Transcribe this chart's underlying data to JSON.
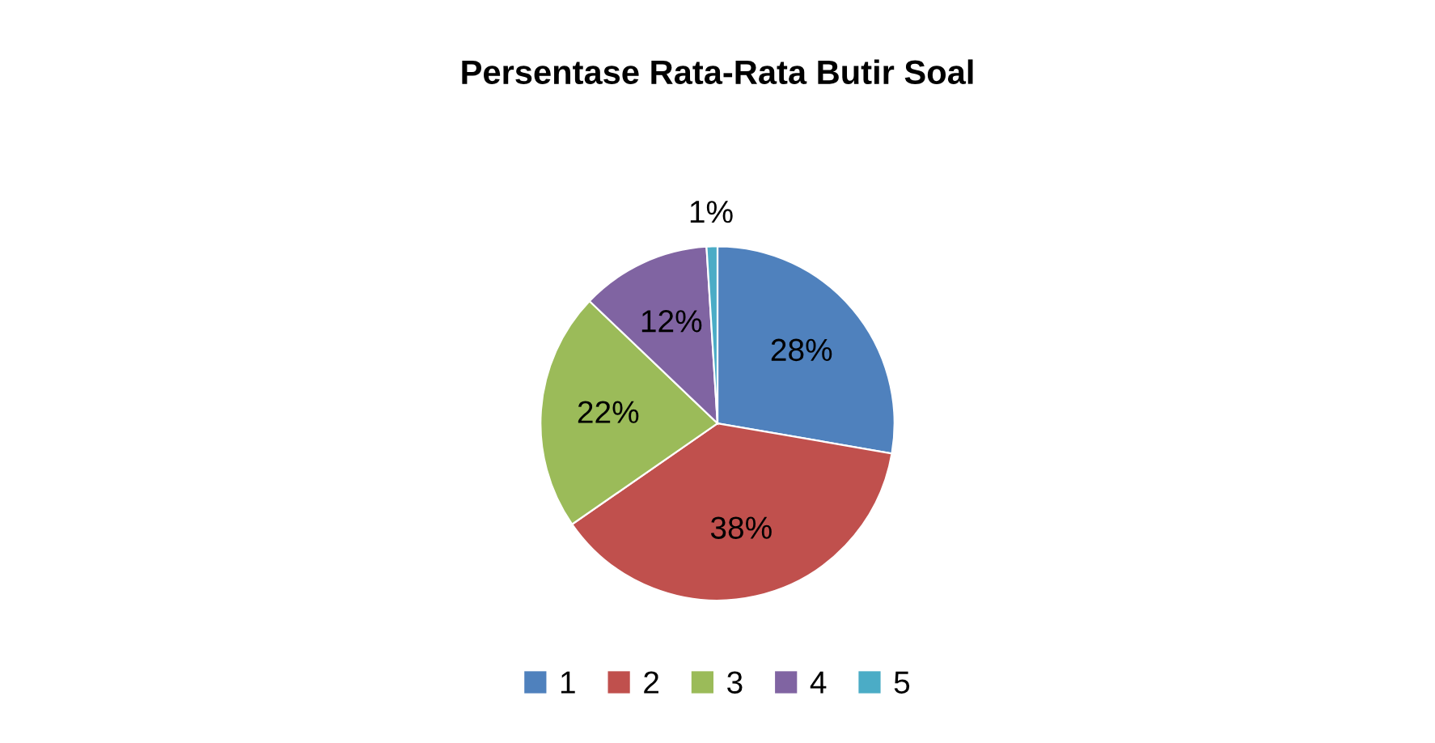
{
  "chart_data": {
    "type": "pie",
    "title": "Persentase Rata-Rata Butir Soal",
    "categories": [
      "1",
      "2",
      "3",
      "4",
      "5"
    ],
    "values": [
      28,
      38,
      22,
      12,
      1
    ],
    "value_labels": [
      "28%",
      "38%",
      "22%",
      "12%",
      "1%"
    ],
    "colors": [
      "#4f81bd",
      "#c0504d",
      "#9bbb59",
      "#8064a2",
      "#4bacc6"
    ],
    "legend": "bottom"
  }
}
